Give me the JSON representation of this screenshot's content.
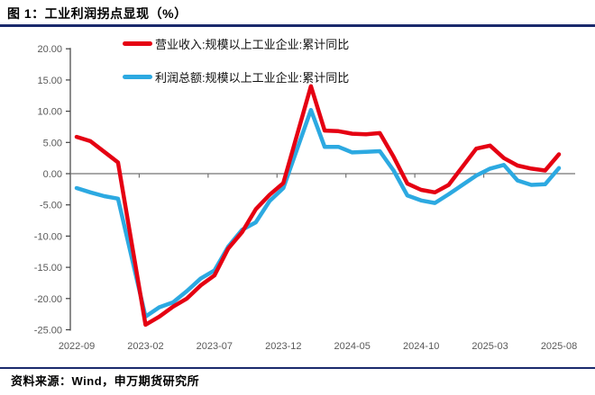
{
  "figure": {
    "title": "图 1：工业利润拐点显现（%）",
    "source": "资料来源：Wind，申万期货研究所"
  },
  "colors": {
    "accent_rule": "#1a2a6c",
    "revenue_line": "#e50012",
    "profit_line": "#2ca9e1",
    "axis": "#595959",
    "zero_line": "#737373"
  },
  "chart_data": {
    "type": "line",
    "title": "工业利润拐点显现（%）",
    "xlabel": "",
    "ylabel": "",
    "ylim": [
      -25,
      20
    ],
    "grid": false,
    "legend_position": "top-center",
    "y_ticks": [
      20,
      15,
      10,
      5,
      0,
      -5,
      -10,
      -15,
      -20,
      -25
    ],
    "x_tick_labels": [
      "2022-09",
      "2023-02",
      "2023-07",
      "2023-12",
      "2024-05",
      "2024-10",
      "2025-03",
      "2025-08"
    ],
    "x": [
      "2022-09",
      "2022-10",
      "2022-11",
      "2022-12",
      "2023-01",
      "2023-02",
      "2023-03",
      "2023-04",
      "2023-05",
      "2023-06",
      "2023-07",
      "2023-08",
      "2023-09",
      "2023-10",
      "2023-11",
      "2023-12",
      "2024-01",
      "2024-02",
      "2024-03",
      "2024-04",
      "2024-05",
      "2024-06",
      "2024-07",
      "2024-08",
      "2024-09",
      "2024-10",
      "2024-11",
      "2024-12",
      "2025-01",
      "2025-02",
      "2025-03",
      "2025-04",
      "2025-05",
      "2025-06",
      "2025-07",
      "2025-08"
    ],
    "series": [
      {
        "key": "revenue-line",
        "name": "营业收入:规模以上工业企业:累计同比",
        "color": "#e50012",
        "values": [
          5.9,
          5.2,
          3.5,
          1.8,
          null,
          -24.2,
          -22.9,
          -21.3,
          -20.0,
          -17.9,
          -16.3,
          -12.0,
          -9.4,
          -5.7,
          -3.4,
          -1.5,
          null,
          14.0,
          6.9,
          6.8,
          6.4,
          6.3,
          6.5,
          2.7,
          -1.6,
          -2.6,
          -3.0,
          -1.8,
          null,
          4.0,
          4.5,
          2.5,
          1.3,
          0.8,
          0.5,
          3.1
        ]
      },
      {
        "key": "profit-line",
        "name": "利润总额:规模以上工业企业:累计同比",
        "color": "#2ca9e1",
        "values": [
          -2.3,
          -3.0,
          -3.6,
          -4.0,
          null,
          -22.9,
          -21.4,
          -20.6,
          -18.8,
          -16.8,
          -15.5,
          -11.7,
          -9.0,
          -7.8,
          -4.4,
          -2.3,
          null,
          10.2,
          4.3,
          4.3,
          3.4,
          3.5,
          3.6,
          0.5,
          -3.5,
          -4.3,
          -4.7,
          -3.3,
          null,
          -0.3,
          0.8,
          1.4,
          -1.1,
          -1.8,
          -1.7,
          0.9
        ]
      }
    ]
  }
}
